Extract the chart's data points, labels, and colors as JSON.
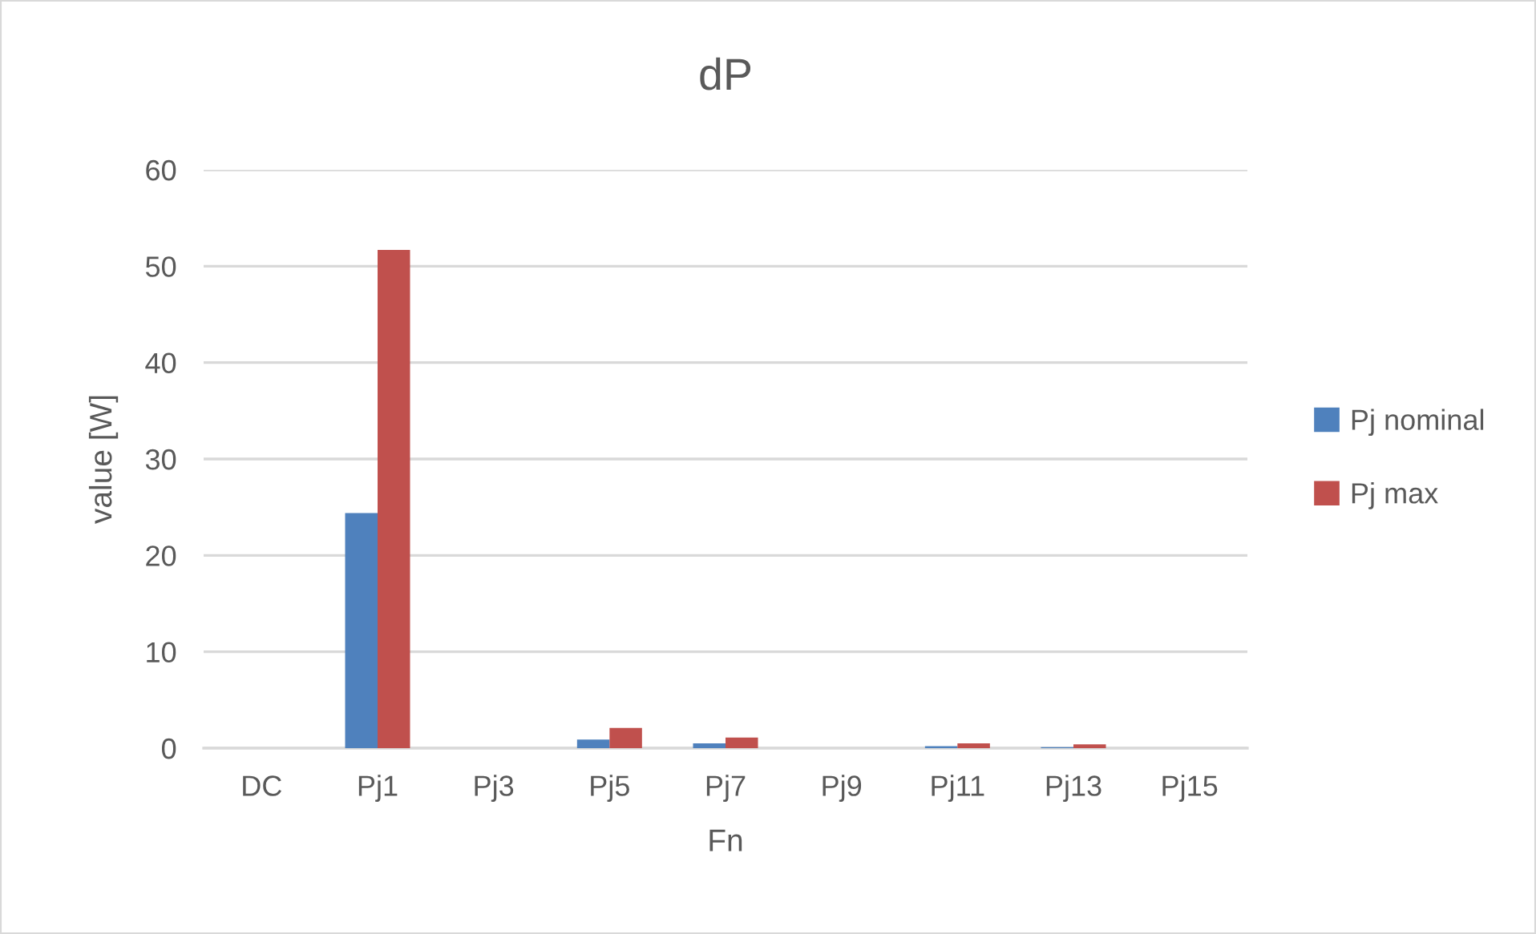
{
  "chart_data": {
    "type": "bar",
    "title": "dP",
    "xlabel": "Fn",
    "ylabel": "value [W]",
    "categories": [
      "DC",
      "Pj1",
      "Pj3",
      "Pj5",
      "Pj7",
      "Pj9",
      "Pj11",
      "Pj13",
      "Pj15"
    ],
    "series": [
      {
        "name": "Pj nominal",
        "color": "#4f81bd",
        "values": [
          0,
          24.4,
          0,
          0.9,
          0.5,
          0,
          0.2,
          0.1,
          0
        ]
      },
      {
        "name": "Pj max",
        "color": "#c0504d",
        "values": [
          0,
          51.7,
          0,
          2.1,
          1.1,
          0,
          0.5,
          0.4,
          0
        ]
      }
    ],
    "ylim": [
      0,
      60
    ],
    "yticks": [
      0,
      10,
      20,
      30,
      40,
      50,
      60
    ],
    "grid": "y",
    "legend": "right"
  }
}
